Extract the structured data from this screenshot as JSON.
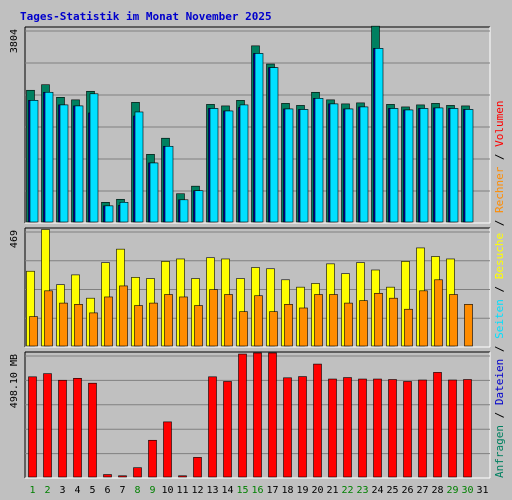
{
  "chart_data": {
    "type": "bar",
    "title": "Tages-Statistik im Monat November 2025",
    "categories": [
      "1",
      "2",
      "3",
      "4",
      "5",
      "6",
      "7",
      "8",
      "9",
      "10",
      "11",
      "12",
      "13",
      "14",
      "15",
      "16",
      "17",
      "18",
      "19",
      "20",
      "21",
      "22",
      "23",
      "24",
      "25",
      "26",
      "27",
      "28",
      "29",
      "30",
      "31"
    ],
    "weekend_days": [
      "1",
      "2",
      "8",
      "9",
      "15",
      "16",
      "22",
      "23",
      "29",
      "30"
    ],
    "colors": {
      "anfragen": "#008060",
      "dateien": "#0000cc",
      "seiten": "#00e0ff",
      "besuche": "#ffff00",
      "rechner": "#ff8c00",
      "volumen": "#ff0000",
      "weekday_label": "#000000",
      "weekend_label": "#008000"
    },
    "legend_right": [
      {
        "label": "Anfragen",
        "color": "#008060"
      },
      {
        "label": "Dateien",
        "color": "#0000cc"
      },
      {
        "label": "Seiten",
        "color": "#00e0ff"
      },
      {
        "label": "Besuche",
        "color": "#ffff00"
      },
      {
        "label": "Rechner",
        "color": "#ff8c00"
      },
      {
        "label": "Volumen",
        "color": "#ff0000"
      }
    ],
    "legend_sep": " / ",
    "panels": [
      {
        "id": "top",
        "ymax": 3804,
        "ytick_label": "3804",
        "series": [
          {
            "name": "Anfragen",
            "values": [
              2610,
              2720,
              2470,
              2420,
              2590,
              390,
              450,
              2370,
              1340,
              1660,
              560,
              710,
              2330,
              2300,
              2410,
              3490,
              3130,
              2350,
              2310,
              2570,
              2420,
              2340,
              2360,
              3880,
              2330,
              2280,
              2320,
              2350,
              2310,
              2300,
              null
            ]
          },
          {
            "name": "Dateien",
            "values": [
              2410,
              2570,
              2320,
              2300,
              2160,
              320,
              330,
              2100,
              1170,
              1500,
              440,
              620,
              2250,
              2200,
              2270,
              3340,
              3060,
              2240,
              2230,
              2450,
              2340,
              2240,
              2280,
              3440,
              2250,
              2220,
              2250,
              2260,
              2250,
              2230,
              null
            ]
          },
          {
            "name": "Seiten",
            "values": [
              2410,
              2570,
              2320,
              2300,
              2540,
              320,
              390,
              2180,
              1170,
              1500,
              440,
              620,
              2250,
              2200,
              2320,
              3340,
              3060,
              2240,
              2230,
              2450,
              2340,
              2240,
              2280,
              3440,
              2250,
              2220,
              2250,
              2260,
              2250,
              2230,
              null
            ]
          }
        ]
      },
      {
        "id": "mid",
        "ymax": 469,
        "ytick_label": "469",
        "series": [
          {
            "name": "Besuche",
            "values": [
              305,
              475,
              250,
              290,
              195,
              340,
              395,
              280,
              275,
              345,
              355,
              275,
              360,
              355,
              275,
              320,
              315,
              270,
              240,
              255,
              335,
              295,
              340,
              310,
              240,
              345,
              400,
              365,
              355,
              null,
              null
            ]
          },
          {
            "name": "Rechner",
            "values": [
              120,
              225,
              175,
              170,
              135,
              200,
              245,
              165,
              175,
              210,
              200,
              165,
              230,
              210,
              140,
              205,
              140,
              170,
              155,
              210,
              210,
              175,
              185,
              215,
              195,
              150,
              225,
              270,
              210,
              170,
              null
            ]
          }
        ]
      },
      {
        "id": "bot",
        "ymax": 498.1,
        "ytick_label": "498.10 MB",
        "series": [
          {
            "name": "Volumen",
            "values": [
              409,
              422,
              395,
              403,
              383,
              10,
              5,
              38,
              150,
              225,
              5,
              80,
              409,
              390,
              502,
              640,
              592,
              405,
              410,
              461,
              400,
              406,
              400,
              400,
              398,
              390,
              396,
              427,
              396,
              398,
              null
            ]
          }
        ]
      }
    ]
  }
}
